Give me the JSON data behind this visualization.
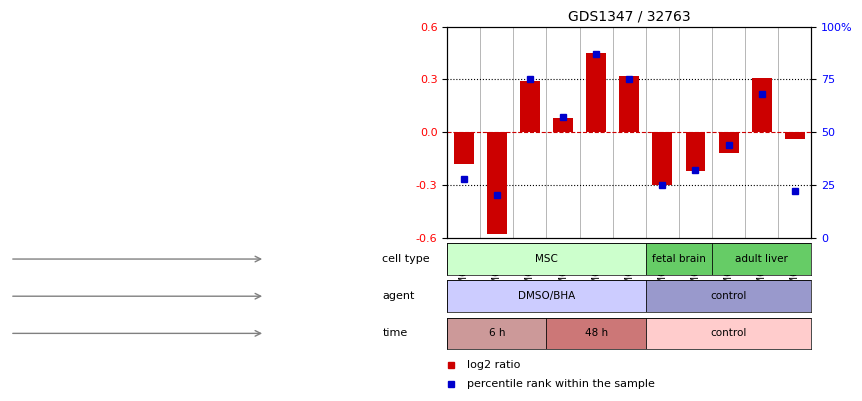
{
  "title": "GDS1347 / 32763",
  "samples": [
    "GSM60436",
    "GSM60437",
    "GSM60438",
    "GSM60440",
    "GSM60442",
    "GSM60444",
    "GSM60433",
    "GSM60434",
    "GSM60448",
    "GSM60450",
    "GSM60451"
  ],
  "log2_ratio": [
    -0.18,
    -0.58,
    0.29,
    0.08,
    0.45,
    0.32,
    -0.3,
    -0.22,
    -0.12,
    0.31,
    -0.04
  ],
  "percentile": [
    28,
    20,
    75,
    57,
    87,
    75,
    25,
    32,
    44,
    68,
    22
  ],
  "ylim": [
    -0.6,
    0.6
  ],
  "yticks": [
    -0.6,
    -0.3,
    0.0,
    0.3,
    0.6
  ],
  "yticks_right": [
    0,
    25,
    50,
    75,
    100
  ],
  "bar_color": "#cc0000",
  "dot_color": "#0000cc",
  "zero_line_color": "#cc0000",
  "cell_type_regions": [
    {
      "label": "MSC",
      "start": 0,
      "end": 5,
      "color": "#ccffcc"
    },
    {
      "label": "fetal brain",
      "start": 6,
      "end": 7,
      "color": "#66cc66"
    },
    {
      "label": "adult liver",
      "start": 8,
      "end": 10,
      "color": "#66cc66"
    }
  ],
  "agent_regions": [
    {
      "label": "DMSO/BHA",
      "start": 0,
      "end": 5,
      "color": "#ccccff"
    },
    {
      "label": "control",
      "start": 6,
      "end": 10,
      "color": "#9999cc"
    }
  ],
  "time_regions": [
    {
      "label": "6 h",
      "start": 0,
      "end": 2,
      "color": "#cc9999"
    },
    {
      "label": "48 h",
      "start": 3,
      "end": 5,
      "color": "#cc7777"
    },
    {
      "label": "control",
      "start": 6,
      "end": 10,
      "color": "#ffcccc"
    }
  ],
  "row_labels": [
    "cell type",
    "agent",
    "time"
  ],
  "legend_items": [
    {
      "color": "#cc0000",
      "label": "log2 ratio"
    },
    {
      "color": "#0000cc",
      "label": "percentile rank within the sample"
    }
  ]
}
